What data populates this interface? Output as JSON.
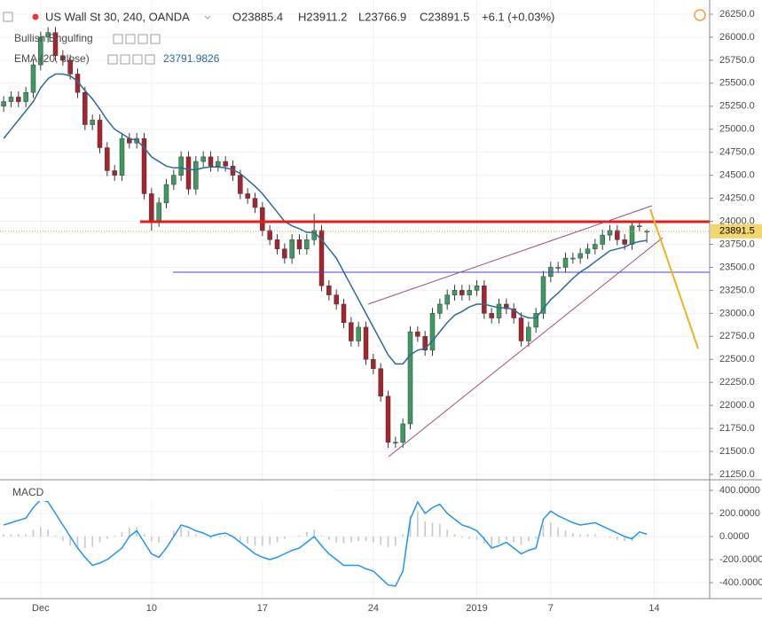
{
  "chart_data": {
    "type": "candlestick",
    "title": "US Wall St 30, 240, OANDA",
    "header_values": [
      "O23885.4",
      "H23911.2",
      "L23766.9",
      "C23891.5"
    ],
    "change": "+6.1 (+0.03%)",
    "indicators": [
      "Bullish Engulfing"
    ],
    "categories": [
      null,
      null,
      null,
      null,
      null,
      "Dec",
      null,
      null,
      null,
      null,
      null,
      null,
      null,
      null,
      null,
      null,
      null,
      null,
      null,
      null,
      "10",
      null,
      null,
      null,
      null,
      null,
      null,
      null,
      null,
      null,
      null,
      null,
      null,
      null,
      null,
      "17",
      null,
      null,
      null,
      null,
      null,
      null,
      null,
      null,
      null,
      null,
      null,
      null,
      null,
      null,
      "24",
      null,
      null,
      null,
      null,
      null,
      null,
      null,
      null,
      null,
      null,
      null,
      null,
      null,
      "2019",
      null,
      null,
      null,
      null,
      null,
      null,
      null,
      null,
      null,
      "7",
      null,
      null,
      null,
      null,
      null,
      null,
      null,
      null,
      null,
      null,
      null,
      null,
      null,
      "14",
      null,
      null,
      null,
      null,
      null,
      null,
      null
    ],
    "candles": {
      "up_color": "#3d9a61",
      "down_color": "#a8232b",
      "open": [
        25250,
        25300,
        25350,
        25300,
        25400,
        25700,
        26000,
        26050,
        25800,
        25750,
        25600,
        25400,
        25050,
        25100,
        24800,
        24550,
        24500,
        24900,
        24850,
        24900,
        24300,
        24000,
        24200,
        24400,
        24500,
        24700,
        24350,
        24650,
        24700,
        24600,
        24650,
        24600,
        24500,
        24300,
        24250,
        24150,
        23900,
        23800,
        23700,
        23600,
        23800,
        23700,
        23800,
        23900,
        23300,
        23200,
        23100,
        22900,
        22700,
        22850,
        22500,
        22400,
        22100,
        21600,
        21600,
        21800,
        22800,
        22750,
        22600,
        23000,
        23100,
        23200,
        23250,
        23200,
        23250,
        23300,
        23000,
        22950,
        23100,
        23050,
        22950,
        22700,
        22850,
        23000,
        23400,
        23500,
        23500,
        23600,
        23600,
        23650,
        23700,
        23750,
        23850,
        23900,
        23800,
        23750,
        23950,
        23885.4,
        null,
        null,
        null,
        null,
        null,
        null,
        null,
        null
      ],
      "high": [
        25360,
        25410,
        25410,
        25460,
        25760,
        26060,
        26110,
        26110,
        25860,
        25810,
        25660,
        25460,
        25160,
        25160,
        24860,
        24610,
        24960,
        24960,
        24960,
        24960,
        24360,
        24260,
        24460,
        24560,
        24760,
        24760,
        24710,
        24760,
        24760,
        24710,
        24710,
        24660,
        24560,
        24360,
        24310,
        24210,
        23960,
        23860,
        23760,
        23860,
        23860,
        23860,
        24080,
        23960,
        23360,
        23260,
        23160,
        22960,
        22910,
        22910,
        22560,
        22460,
        22160,
        21660,
        21860,
        22860,
        22860,
        22810,
        23060,
        23160,
        23260,
        23310,
        23310,
        23310,
        23360,
        23360,
        23060,
        23160,
        23160,
        23110,
        23010,
        22910,
        23060,
        23460,
        23560,
        23560,
        23660,
        23660,
        23710,
        23760,
        23810,
        23910,
        23960,
        23960,
        23860,
        24010,
        24010,
        23911.2,
        null,
        null,
        null,
        null,
        null,
        null,
        null,
        null
      ],
      "low": [
        25190,
        25240,
        25240,
        25240,
        25340,
        25640,
        25940,
        25740,
        25690,
        25540,
        25340,
        24990,
        24990,
        24740,
        24490,
        24440,
        24440,
        24790,
        24790,
        24240,
        23900,
        23940,
        24140,
        24340,
        24440,
        24290,
        24290,
        24590,
        24540,
        24540,
        24540,
        24440,
        24240,
        24190,
        24090,
        23840,
        23740,
        23640,
        23540,
        23540,
        23640,
        23640,
        23740,
        23240,
        23140,
        23040,
        22840,
        22640,
        22640,
        22440,
        22340,
        22040,
        21540,
        21540,
        21540,
        21740,
        22690,
        22540,
        22540,
        22940,
        23040,
        23140,
        23140,
        23140,
        23190,
        22940,
        22890,
        22890,
        22990,
        22890,
        22640,
        22640,
        22790,
        22940,
        23340,
        23440,
        23440,
        23540,
        23540,
        23590,
        23640,
        23690,
        23790,
        23740,
        23690,
        23690,
        23890,
        23766.9,
        null,
        null,
        null,
        null,
        null,
        null,
        null,
        null
      ],
      "close": [
        25300,
        25350,
        25300,
        25400,
        25700,
        26000,
        26050,
        25800,
        25750,
        25600,
        25400,
        25050,
        25100,
        24800,
        24550,
        24500,
        24900,
        24850,
        24900,
        24300,
        24000,
        24200,
        24400,
        24500,
        24700,
        24350,
        24650,
        24700,
        24600,
        24650,
        24600,
        24500,
        24300,
        24250,
        24150,
        23900,
        23800,
        23700,
        23600,
        23800,
        23700,
        23800,
        23900,
        23300,
        23200,
        23100,
        22900,
        22700,
        22850,
        22500,
        22400,
        22100,
        21600,
        21600,
        21800,
        22800,
        22750,
        22600,
        23000,
        23100,
        23200,
        23250,
        23200,
        23250,
        23300,
        23000,
        22950,
        23100,
        23050,
        22950,
        22700,
        22850,
        23000,
        23400,
        23500,
        23500,
        23600,
        23600,
        23650,
        23700,
        23750,
        23850,
        23900,
        23800,
        23750,
        23950,
        23950,
        23891.5,
        null,
        null,
        null,
        null,
        null,
        null,
        null,
        null
      ]
    },
    "series": [
      {
        "name": "EMA (20, close)",
        "color": "#2b6a9b",
        "values": [
          24900,
          25000,
          25100,
          25200,
          25300,
          25450,
          25550,
          25600,
          25600,
          25580,
          25520,
          25420,
          25330,
          25220,
          25100,
          25000,
          24950,
          24900,
          24880,
          24800,
          24700,
          24650,
          24600,
          24580,
          24580,
          24560,
          24560,
          24580,
          24590,
          24590,
          24580,
          24560,
          24520,
          24450,
          24380,
          24300,
          24200,
          24100,
          24000,
          23950,
          23920,
          23880,
          23880,
          23800,
          23700,
          23600,
          23450,
          23300,
          23150,
          23000,
          22850,
          22700,
          22550,
          22450,
          22450,
          22550,
          22600,
          22620,
          22700,
          22800,
          22900,
          22980,
          23020,
          23070,
          23100,
          23100,
          23080,
          23060,
          23060,
          23040,
          22980,
          22950,
          22950,
          23050,
          23150,
          23220,
          23300,
          23380,
          23450,
          23500,
          23560,
          23620,
          23680,
          23700,
          23720,
          23760,
          23780,
          23791.9826,
          null,
          null,
          null,
          null,
          null,
          null,
          null,
          null
        ]
      }
    ],
    "ylim": [
      21202,
      26404
    ],
    "yticks": [
      {
        "value": 26250,
        "label": "26250.0"
      },
      {
        "value": 26000,
        "label": "26000.0"
      },
      {
        "value": 25750,
        "label": "25750.0"
      },
      {
        "value": 25500,
        "label": "25500.0"
      },
      {
        "value": 25250,
        "label": "25250.0"
      },
      {
        "value": 25000,
        "label": "25000.0"
      },
      {
        "value": 24750,
        "label": "24750.0"
      },
      {
        "value": 24500,
        "label": "24500.0"
      },
      {
        "value": 24250,
        "label": "24250.0"
      },
      {
        "value": 24000,
        "label": "24000.0"
      },
      {
        "value": 23750,
        "label": "23750.0"
      },
      {
        "value": 23500,
        "label": "23500.0"
      },
      {
        "value": 23250,
        "label": "23250.0"
      },
      {
        "value": 23000,
        "label": "23000.0"
      },
      {
        "value": 22750,
        "label": "22750.0"
      },
      {
        "value": 22500,
        "label": "22500.0"
      },
      {
        "value": 22250,
        "label": "22250.0"
      },
      {
        "value": 22000,
        "label": "22000.0"
      },
      {
        "value": 21750,
        "label": "21750.0"
      },
      {
        "value": 21500,
        "label": "21500.0"
      },
      {
        "value": 21250,
        "label": "21250.0"
      }
    ],
    "grid": true,
    "macd": {
      "title": "MACD",
      "color": "#2196f3",
      "histogram_color": "#c8c8c8",
      "ylim": [
        -538,
        492
      ],
      "yticks": [
        {
          "value": 400,
          "label": "400.0000"
        },
        {
          "value": 200,
          "label": "200.0000"
        },
        {
          "value": 0,
          "label": "0.0000"
        },
        {
          "value": -200,
          "label": "-200.0000"
        },
        {
          "value": -400,
          "label": "-400.0000"
        }
      ],
      "values": [
        100,
        120,
        140,
        160,
        250,
        320,
        300,
        200,
        100,
        0,
        -100,
        -180,
        -250,
        -230,
        -200,
        -150,
        -100,
        0,
        50,
        -50,
        -150,
        -180,
        -100,
        0,
        100,
        80,
        50,
        30,
        0,
        20,
        30,
        0,
        -50,
        -100,
        -150,
        -180,
        -200,
        -180,
        -150,
        -120,
        -100,
        -50,
        0,
        -80,
        -150,
        -200,
        -250,
        -250,
        -250,
        -280,
        -300,
        -360,
        -420,
        -430,
        -300,
        150,
        300,
        200,
        250,
        280,
        200,
        150,
        100,
        80,
        50,
        -20,
        -100,
        -80,
        -50,
        -100,
        -150,
        -120,
        -100,
        150,
        220,
        180,
        150,
        120,
        100,
        110,
        120,
        90,
        60,
        30,
        0,
        -20,
        40,
        20,
        null,
        null,
        null,
        null,
        null,
        null,
        null,
        null
      ],
      "histogram": [
        20,
        20,
        20,
        20,
        60,
        80,
        60,
        10,
        -40,
        -80,
        -100,
        -100,
        -90,
        -50,
        -20,
        10,
        40,
        80,
        80,
        20,
        -40,
        -50,
        0,
        50,
        80,
        50,
        20,
        0,
        -20,
        0,
        10,
        -10,
        -40,
        -60,
        -80,
        -80,
        -70,
        -50,
        -20,
        0,
        10,
        40,
        60,
        10,
        -30,
        -50,
        -60,
        -50,
        -40,
        -40,
        -50,
        -70,
        -90,
        -80,
        20,
        180,
        220,
        130,
        120,
        110,
        60,
        20,
        -10,
        -20,
        -30,
        -60,
        -90,
        -60,
        -30,
        -50,
        -70,
        -40,
        -20,
        100,
        120,
        80,
        50,
        30,
        20,
        20,
        20,
        0,
        -10,
        -30,
        -40,
        -40,
        10,
        0,
        null,
        null,
        null,
        null,
        null,
        null,
        null,
        null
      ]
    }
  }
}
